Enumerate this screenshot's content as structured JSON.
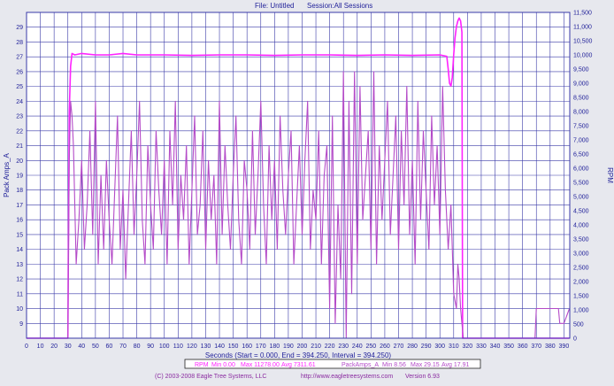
{
  "header": {
    "file_text": "File: Untitled",
    "session_text": "Session:All Sessions"
  },
  "footer": {
    "copyright": "(C) 2003-2008 Eagle Tree Systems, LLC",
    "website": "http://www.eagletreesystems.com",
    "version": "Version 6.93"
  },
  "colors": {
    "background": "#e7e8ee",
    "plot_bg": "#ffffff",
    "grid": "#3a3aa8",
    "rpm_series": "#ff22ff",
    "amps_series": "#b44bc8",
    "axis_text": "#22229a",
    "legend_bg": "#ffffff"
  },
  "chart_data": {
    "type": "line",
    "xlabel": "Seconds (Start = 0.000, End = 394.250, Interval = 394.250)",
    "ylabel_left": "Pack Amps_A",
    "ylabel_right": "RPM",
    "xlim": [
      0,
      394.25
    ],
    "ylim_left": [
      8,
      30
    ],
    "ylim_right": [
      0,
      11500
    ],
    "x_ticks": [
      "0",
      "10",
      "20",
      "30",
      "40",
      "50",
      "60",
      "70",
      "80",
      "90",
      "100",
      "110",
      "120",
      "130",
      "140",
      "150",
      "160",
      "170",
      "180",
      "190",
      "200",
      "210",
      "220",
      "230",
      "240",
      "250",
      "260",
      "270",
      "280",
      "290",
      "300",
      "310",
      "320",
      "330",
      "340",
      "350",
      "360",
      "370",
      "380",
      "390"
    ],
    "y_left_ticks": [
      "9",
      "10",
      "11",
      "12",
      "13",
      "14",
      "15",
      "16",
      "17",
      "18",
      "19",
      "20",
      "21",
      "22",
      "23",
      "24",
      "25",
      "26",
      "27",
      "28",
      "29"
    ],
    "y_right_ticks": [
      "0",
      "500",
      "1,000",
      "1,500",
      "2,000",
      "2,500",
      "3,000",
      "3,500",
      "4,000",
      "4,500",
      "5,000",
      "5,500",
      "6,000",
      "6,500",
      "7,000",
      "7,500",
      "8,000",
      "8,500",
      "9,000",
      "9,500",
      "10,000",
      "10,500",
      "11,000",
      "11,500"
    ],
    "grid": true,
    "series": [
      {
        "name": "RPM",
        "axis": "right",
        "x": [
          0,
          29,
          30,
          31,
          32,
          33,
          35,
          40,
          50,
          60,
          70,
          80,
          90,
          100,
          120,
          140,
          160,
          180,
          200,
          220,
          240,
          260,
          280,
          300,
          305,
          306,
          307,
          308,
          309,
          310,
          311,
          312,
          313,
          314,
          315,
          316,
          316.5,
          317,
          318,
          320,
          330,
          340,
          350,
          360,
          370,
          371,
          380,
          385,
          386,
          387,
          390,
          394
        ],
        "y": [
          0,
          0,
          0,
          8000,
          9600,
          10050,
          10000,
          10050,
          10000,
          10000,
          10050,
          10000,
          10000,
          10000,
          9980,
          10000,
          10000,
          9980,
          10000,
          10000,
          9980,
          10000,
          9980,
          10000,
          9950,
          9500,
          9000,
          8900,
          9200,
          10000,
          10600,
          11000,
          11200,
          11300,
          11200,
          10800,
          0,
          0,
          0,
          0,
          0,
          0,
          0,
          0,
          0,
          0,
          0,
          0,
          0,
          0,
          0,
          0
        ]
      },
      {
        "name": "PackAmps_A",
        "axis": "left",
        "x": [
          0,
          29,
          30,
          31,
          32,
          33,
          34,
          36,
          38,
          40,
          42,
          44,
          46,
          48,
          50,
          52,
          54,
          56,
          58,
          60,
          62,
          64,
          66,
          68,
          70,
          72,
          74,
          76,
          78,
          80,
          82,
          84,
          86,
          88,
          90,
          92,
          94,
          96,
          98,
          100,
          102,
          104,
          106,
          108,
          110,
          112,
          114,
          116,
          118,
          120,
          122,
          124,
          126,
          128,
          130,
          132,
          134,
          136,
          138,
          140,
          142,
          144,
          146,
          148,
          150,
          152,
          154,
          156,
          158,
          160,
          162,
          164,
          166,
          168,
          170,
          172,
          174,
          176,
          178,
          180,
          182,
          184,
          186,
          188,
          190,
          192,
          194,
          196,
          198,
          200,
          202,
          204,
          206,
          208,
          210,
          212,
          214,
          216,
          218,
          220,
          222,
          224,
          226,
          228,
          230,
          232,
          234,
          236,
          238,
          240,
          242,
          244,
          246,
          248,
          250,
          252,
          254,
          256,
          258,
          260,
          262,
          264,
          266,
          268,
          270,
          272,
          274,
          276,
          278,
          280,
          282,
          284,
          286,
          288,
          290,
          292,
          294,
          296,
          298,
          300,
          302,
          304,
          306,
          308,
          310,
          312,
          313,
          314,
          315,
          316,
          317,
          318,
          320,
          330,
          340,
          350,
          360,
          369,
          370,
          371,
          380,
          385,
          386,
          387,
          390,
          394
        ],
        "y": [
          8,
          8,
          8,
          20,
          24,
          23,
          21,
          13,
          16,
          20,
          14,
          17,
          22,
          15,
          24,
          13,
          19,
          14,
          20,
          16,
          13,
          18,
          23,
          14,
          18,
          12,
          17,
          22,
          15,
          19,
          24,
          16,
          13,
          21,
          17,
          14,
          22,
          18,
          15,
          20,
          13,
          22,
          17,
          24,
          14,
          19,
          16,
          21,
          13,
          18,
          23,
          15,
          17,
          22,
          14,
          20,
          16,
          19,
          13,
          24,
          15,
          21,
          17,
          14,
          19,
          23,
          16,
          13,
          20,
          18,
          14,
          22,
          15,
          19,
          24,
          17,
          13,
          21,
          16,
          20,
          14,
          23,
          18,
          15,
          19,
          22,
          13,
          17,
          21,
          15,
          20,
          24,
          14,
          18,
          16,
          22,
          13,
          19,
          21,
          10,
          23,
          9,
          17,
          12,
          26,
          8,
          24,
          11,
          26,
          13,
          25,
          16,
          19,
          22,
          14,
          26,
          13,
          21,
          16,
          20,
          24,
          15,
          19,
          23,
          14,
          22,
          17,
          25,
          15,
          20,
          13,
          24,
          16,
          22,
          18,
          14,
          23,
          17,
          21,
          15,
          25,
          18,
          14,
          17,
          11,
          10,
          13,
          12,
          10,
          9,
          8,
          8,
          8,
          8,
          8,
          8,
          8,
          8,
          10,
          10,
          10,
          10,
          10,
          9,
          9,
          10
        ]
      }
    ],
    "legend": {
      "rpm_name": "RPM",
      "rpm_stats": [
        "Min 0.00",
        "Max 11278.00",
        "Avg 7311.61"
      ],
      "amps_name": "PackAmps_A",
      "amps_stats": [
        "Min 8.56",
        "Max 29.15",
        "Avg 17.91"
      ]
    }
  }
}
